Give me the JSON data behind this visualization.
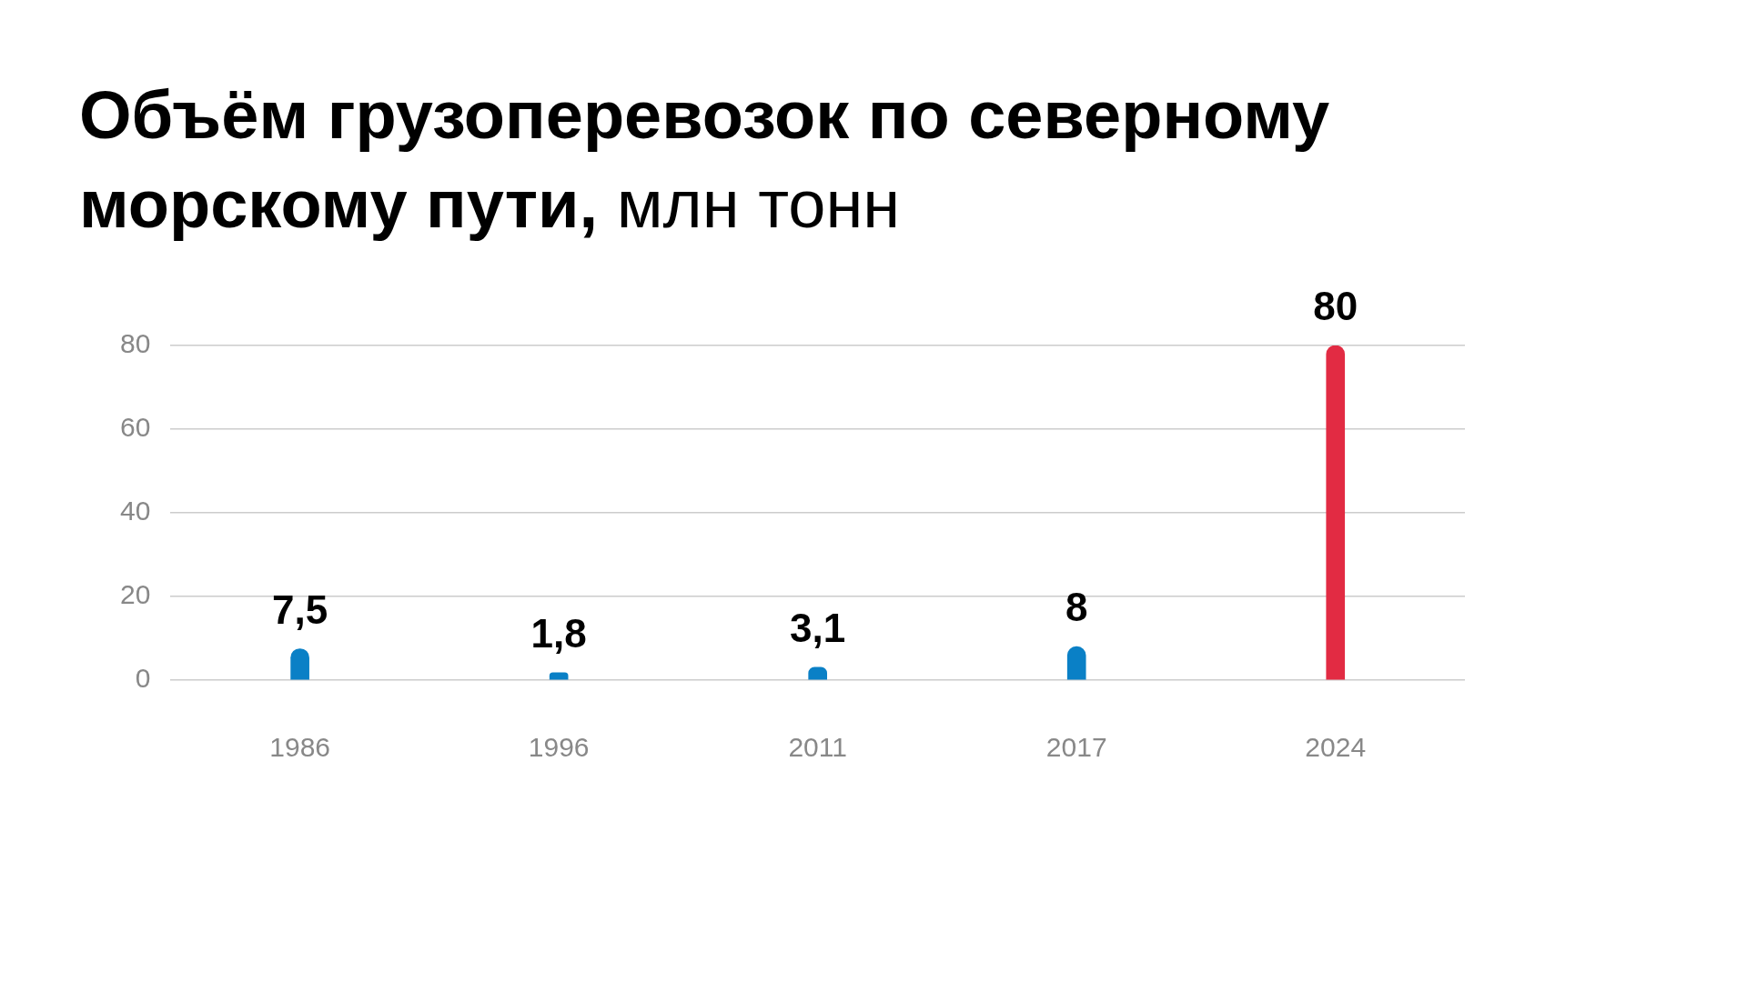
{
  "chart_data": {
    "type": "bar",
    "title": "Объём грузоперевозок по северному морскому пути,",
    "subtitle": "млн тонн",
    "categories": [
      "1986",
      "1996",
      "2011",
      "2017",
      "2024"
    ],
    "values": [
      7.5,
      1.8,
      3.1,
      8,
      80
    ],
    "colors": [
      "#0a80c6",
      "#0a80c6",
      "#0a80c6",
      "#0a80c6",
      "#e22b43"
    ],
    "value_labels": [
      "7,5",
      "1,8",
      "3,1",
      "8",
      "80"
    ],
    "ylim": [
      0,
      80
    ],
    "yticks": [
      0,
      20,
      40,
      60,
      80
    ],
    "grid": "y"
  }
}
